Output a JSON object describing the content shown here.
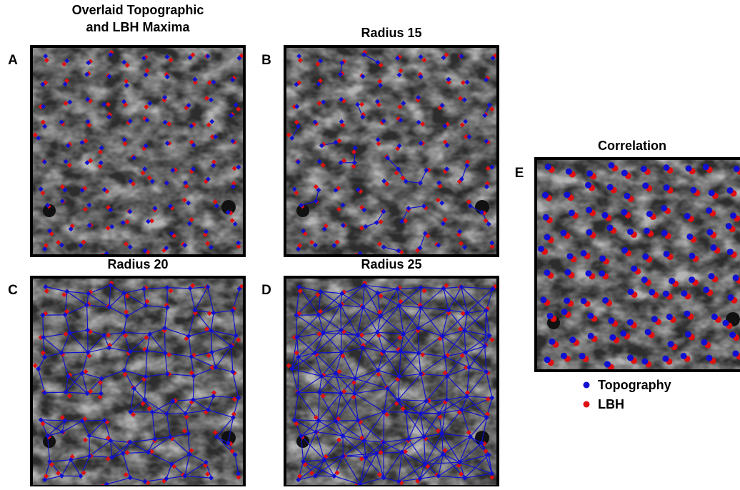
{
  "panels": [
    {
      "label": "A",
      "title_lines": [
        "Overlaid Topographic",
        "and LBH Maxima"
      ]
    },
    {
      "label": "B",
      "title_lines": [
        "Radius 15"
      ]
    },
    {
      "label": "C",
      "title_lines": [
        "Radius 20"
      ]
    },
    {
      "label": "D",
      "title_lines": [
        "Radius 25"
      ]
    },
    {
      "label": "E",
      "title_lines": [
        "Correlation"
      ]
    }
  ],
  "legend": [
    {
      "name": "Topography",
      "color": "#1010d0"
    },
    {
      "name": "LBH",
      "color": "#e01010"
    }
  ]
}
